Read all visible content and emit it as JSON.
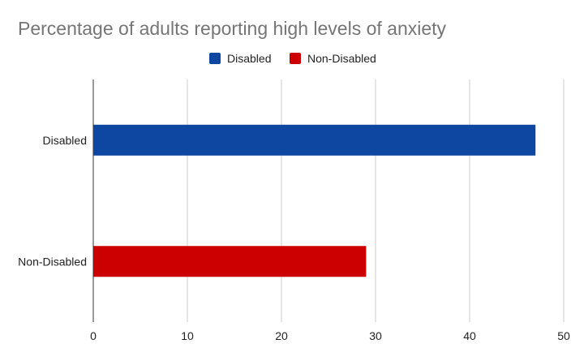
{
  "chart_data": {
    "type": "bar",
    "orientation": "horizontal",
    "title": "Percentage of adults reporting high levels of anxiety",
    "categories": [
      "Disabled",
      "Non-Disabled"
    ],
    "series": [
      {
        "name": "Disabled",
        "color": "#0d47a1",
        "values": [
          47,
          null
        ]
      },
      {
        "name": "Non-Disabled",
        "color": "#cc0000",
        "values": [
          null,
          29
        ]
      }
    ],
    "xlim": [
      0,
      50
    ],
    "xticks": [
      "0",
      "10",
      "20",
      "30",
      "40",
      "50"
    ],
    "grid": true,
    "legend_position": "top"
  }
}
